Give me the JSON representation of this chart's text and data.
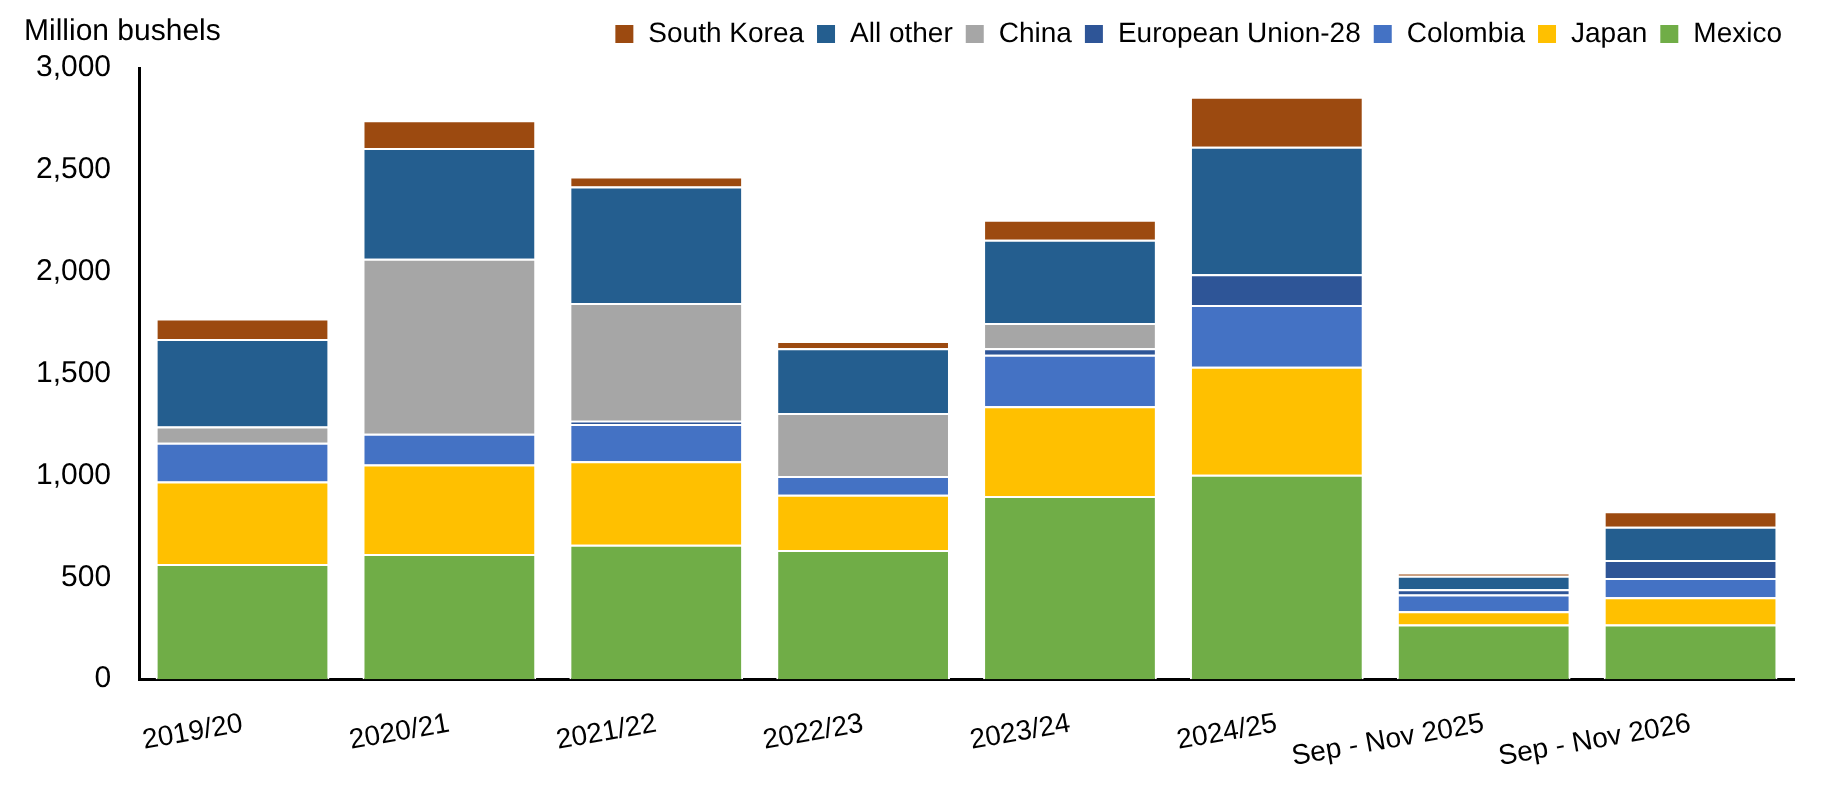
{
  "chart_data": {
    "type": "bar",
    "stacked": true,
    "ylabel": "Million bushels",
    "categories": [
      "2019/20",
      "2020/21",
      "2021/22",
      "2022/23",
      "2023/24",
      "2024/25",
      "Sep - Nov 2025",
      "Sep - Nov 2026"
    ],
    "series": [
      {
        "name": "Mexico",
        "color": "#70ad47",
        "values": [
          565,
          614,
          660,
          634,
          899,
          1003,
          268,
          268
        ]
      },
      {
        "name": "Japan",
        "color": "#ffc000",
        "values": [
          405,
          440,
          409,
          271,
          441,
          530,
          65,
          134
        ]
      },
      {
        "name": "Colombia",
        "color": "#4472c4",
        "values": [
          190,
          150,
          183,
          92,
          252,
          304,
          82,
          95
        ]
      },
      {
        "name": "European Union-28",
        "color": "#2e5597",
        "values": [
          0,
          0,
          16,
          0,
          32,
          150,
          26,
          88
        ]
      },
      {
        "name": "China",
        "color": "#a6a6a6",
        "values": [
          80,
          860,
          578,
          310,
          124,
          0,
          0,
          0
        ]
      },
      {
        "name": "All other",
        "color": "#245e8f",
        "values": [
          430,
          543,
          572,
          317,
          409,
          627,
          66,
          163
        ]
      },
      {
        "name": "South Korea",
        "color": "#9c4a10",
        "values": [
          100,
          137,
          49,
          36,
          98,
          245,
          13,
          76
        ]
      }
    ],
    "ylim": [
      0,
      3000
    ],
    "yticks": [
      0,
      {
        "value": 500,
        "label": "500"
      },
      {
        "value": 1000,
        "label": "1,000"
      },
      {
        "value": 1500,
        "label": "1,500"
      },
      {
        "value": 2000,
        "label": "2,000"
      },
      {
        "value": 2500,
        "label": "2,500"
      },
      {
        "value": 3000,
        "label": "3,000"
      }
    ],
    "grid": false,
    "legend": "top right"
  }
}
